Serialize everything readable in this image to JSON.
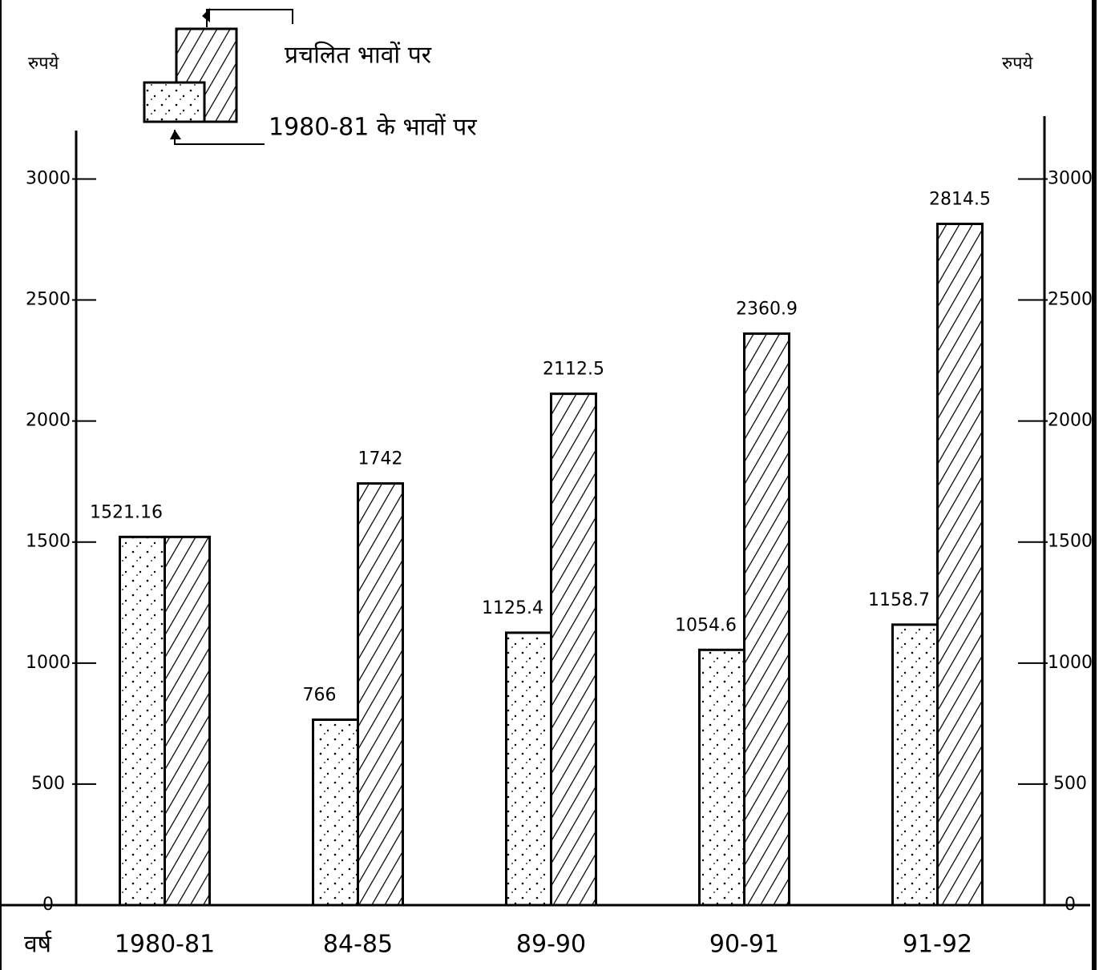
{
  "chart_data": {
    "type": "bar",
    "y_label": "रुपये",
    "y2_label": "रुपये",
    "x_label": "वर्ष",
    "categories": [
      "1980-81",
      "84-85",
      "89-90",
      "90-91",
      "91-92"
    ],
    "series": [
      {
        "name": "1980-81 के भावों पर",
        "color": "#000000",
        "pattern": "dots",
        "values": [
          1521.16,
          766,
          1125.4,
          1054.6,
          1158.7
        ]
      },
      {
        "name": "प्रचलित भावों पर",
        "color": "#000000",
        "pattern": "hatch",
        "values": [
          1521.16,
          1742,
          2112.5,
          2360.9,
          2814.5
        ],
        "value_labels": [
          null,
          "1742",
          "2112.5",
          "2360.9",
          "2814.5"
        ]
      }
    ],
    "ylim": [
      0,
      3200
    ],
    "yticks": [
      0,
      500,
      1000,
      1500,
      2000,
      2500,
      3000
    ],
    "y2lim": [
      0,
      3200
    ],
    "y2ticks": [
      0,
      500,
      1000,
      1500,
      2000,
      2500,
      3000
    ]
  }
}
